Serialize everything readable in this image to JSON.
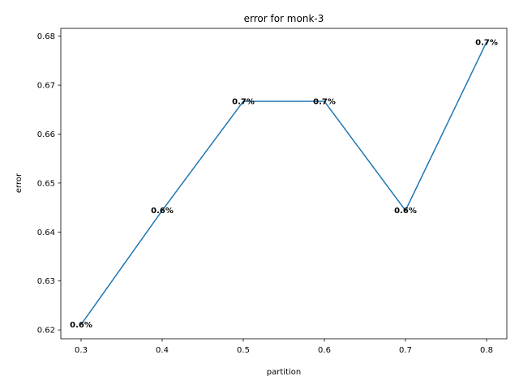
{
  "chart_data": {
    "type": "line",
    "title": "error for monk-3",
    "xlabel": "partition",
    "ylabel": "error",
    "xlim": [
      0.275,
      0.825
    ],
    "ylim": [
      0.6182,
      0.6816
    ],
    "xticks": [
      0.3,
      0.4,
      0.5,
      0.6,
      0.7,
      0.8
    ],
    "xtick_labels": [
      "0.3",
      "0.4",
      "0.5",
      "0.6",
      "0.7",
      "0.8"
    ],
    "yticks": [
      0.62,
      0.63,
      0.64,
      0.65,
      0.66,
      0.67,
      0.68
    ],
    "ytick_labels": [
      "0.62",
      "0.63",
      "0.64",
      "0.65",
      "0.66",
      "0.67",
      "0.68"
    ],
    "grid": false,
    "series": [
      {
        "color": "#1f77b4",
        "x": [
          0.3,
          0.4,
          0.5,
          0.6,
          0.7,
          0.8
        ],
        "y": [
          0.6211,
          0.6444,
          0.6667,
          0.6667,
          0.6444,
          0.6788
        ]
      }
    ],
    "data_labels": [
      "0.6%",
      "0.6%",
      "0.7%",
      "0.7%",
      "0.6%",
      "0.7%"
    ]
  }
}
